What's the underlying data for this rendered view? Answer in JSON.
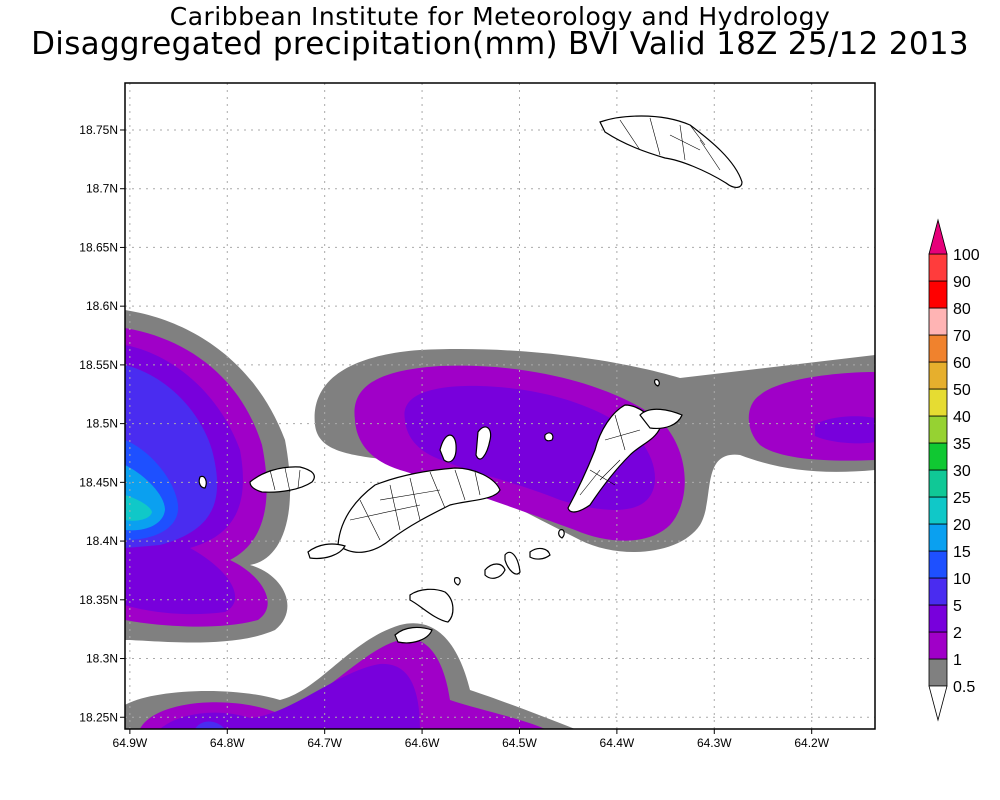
{
  "header": {
    "title": "Caribbean Institute for Meteorology and Hydrology",
    "subtitle": "Disaggregated precipitation(mm) BVI Valid 18Z 25/12 2013"
  },
  "map": {
    "lat_ticks": [
      "18.75N",
      "18.7N",
      "18.65N",
      "18.6N",
      "18.55N",
      "18.5N",
      "18.45N",
      "18.4N",
      "18.35N",
      "18.3N",
      "18.25N"
    ],
    "lon_ticks": [
      "64.9W",
      "64.8W",
      "64.7W",
      "64.6W",
      "64.5W",
      "64.4W",
      "64.3W",
      "64.2W"
    ],
    "lat_range": [
      18.24,
      18.79
    ],
    "lon_range": [
      -64.905,
      -64.135
    ],
    "grid": true
  },
  "legend": {
    "levels": [
      "0.5",
      "1",
      "2",
      "5",
      "10",
      "15",
      "20",
      "25",
      "30",
      "35",
      "40",
      "50",
      "60",
      "70",
      "80",
      "90",
      "100"
    ],
    "colors": [
      "#808080",
      "#a000c8",
      "#7800dc",
      "#4a2cf0",
      "#1e50ff",
      "#0aa0f0",
      "#10c8c8",
      "#10c896",
      "#10c832",
      "#96d232",
      "#e6dc32",
      "#e6af2d",
      "#f0822d",
      "#ffb4b4",
      "#ff0000",
      "#ff3c3c",
      "#e6007a"
    ]
  }
}
